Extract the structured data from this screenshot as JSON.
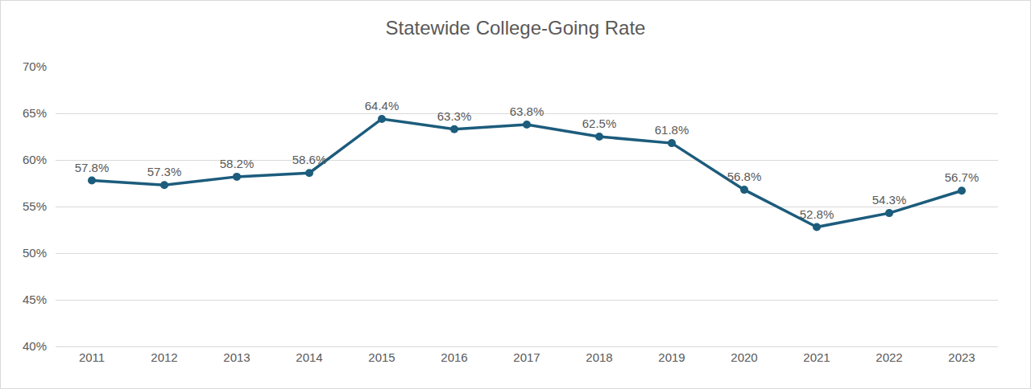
{
  "chart_data": {
    "type": "line",
    "title": "Statewide College-Going Rate",
    "categories": [
      "2011",
      "2012",
      "2013",
      "2014",
      "2015",
      "2016",
      "2017",
      "2018",
      "2019",
      "2020",
      "2021",
      "2022",
      "2023"
    ],
    "values": [
      57.8,
      57.3,
      58.2,
      58.6,
      64.4,
      63.3,
      63.8,
      62.5,
      61.8,
      56.8,
      52.8,
      54.3,
      56.7
    ],
    "value_labels": [
      "57.8%",
      "57.3%",
      "58.2%",
      "58.6%",
      "64.4%",
      "63.3%",
      "63.8%",
      "62.5%",
      "61.8%",
      "56.8%",
      "52.8%",
      "54.3%",
      "56.7%"
    ],
    "color": "#1c5c7c",
    "marker": "circle",
    "data_labels": true,
    "ylim": [
      40,
      70
    ],
    "yticks": [
      {
        "value": 40,
        "label": "40%"
      },
      {
        "value": 45,
        "label": "45%"
      },
      {
        "value": 50,
        "label": "50%"
      },
      {
        "value": 55,
        "label": "55%"
      },
      {
        "value": 60,
        "label": "60%"
      },
      {
        "value": 65,
        "label": "65%"
      },
      {
        "value": 70,
        "label": "70%"
      }
    ],
    "grid": true
  }
}
